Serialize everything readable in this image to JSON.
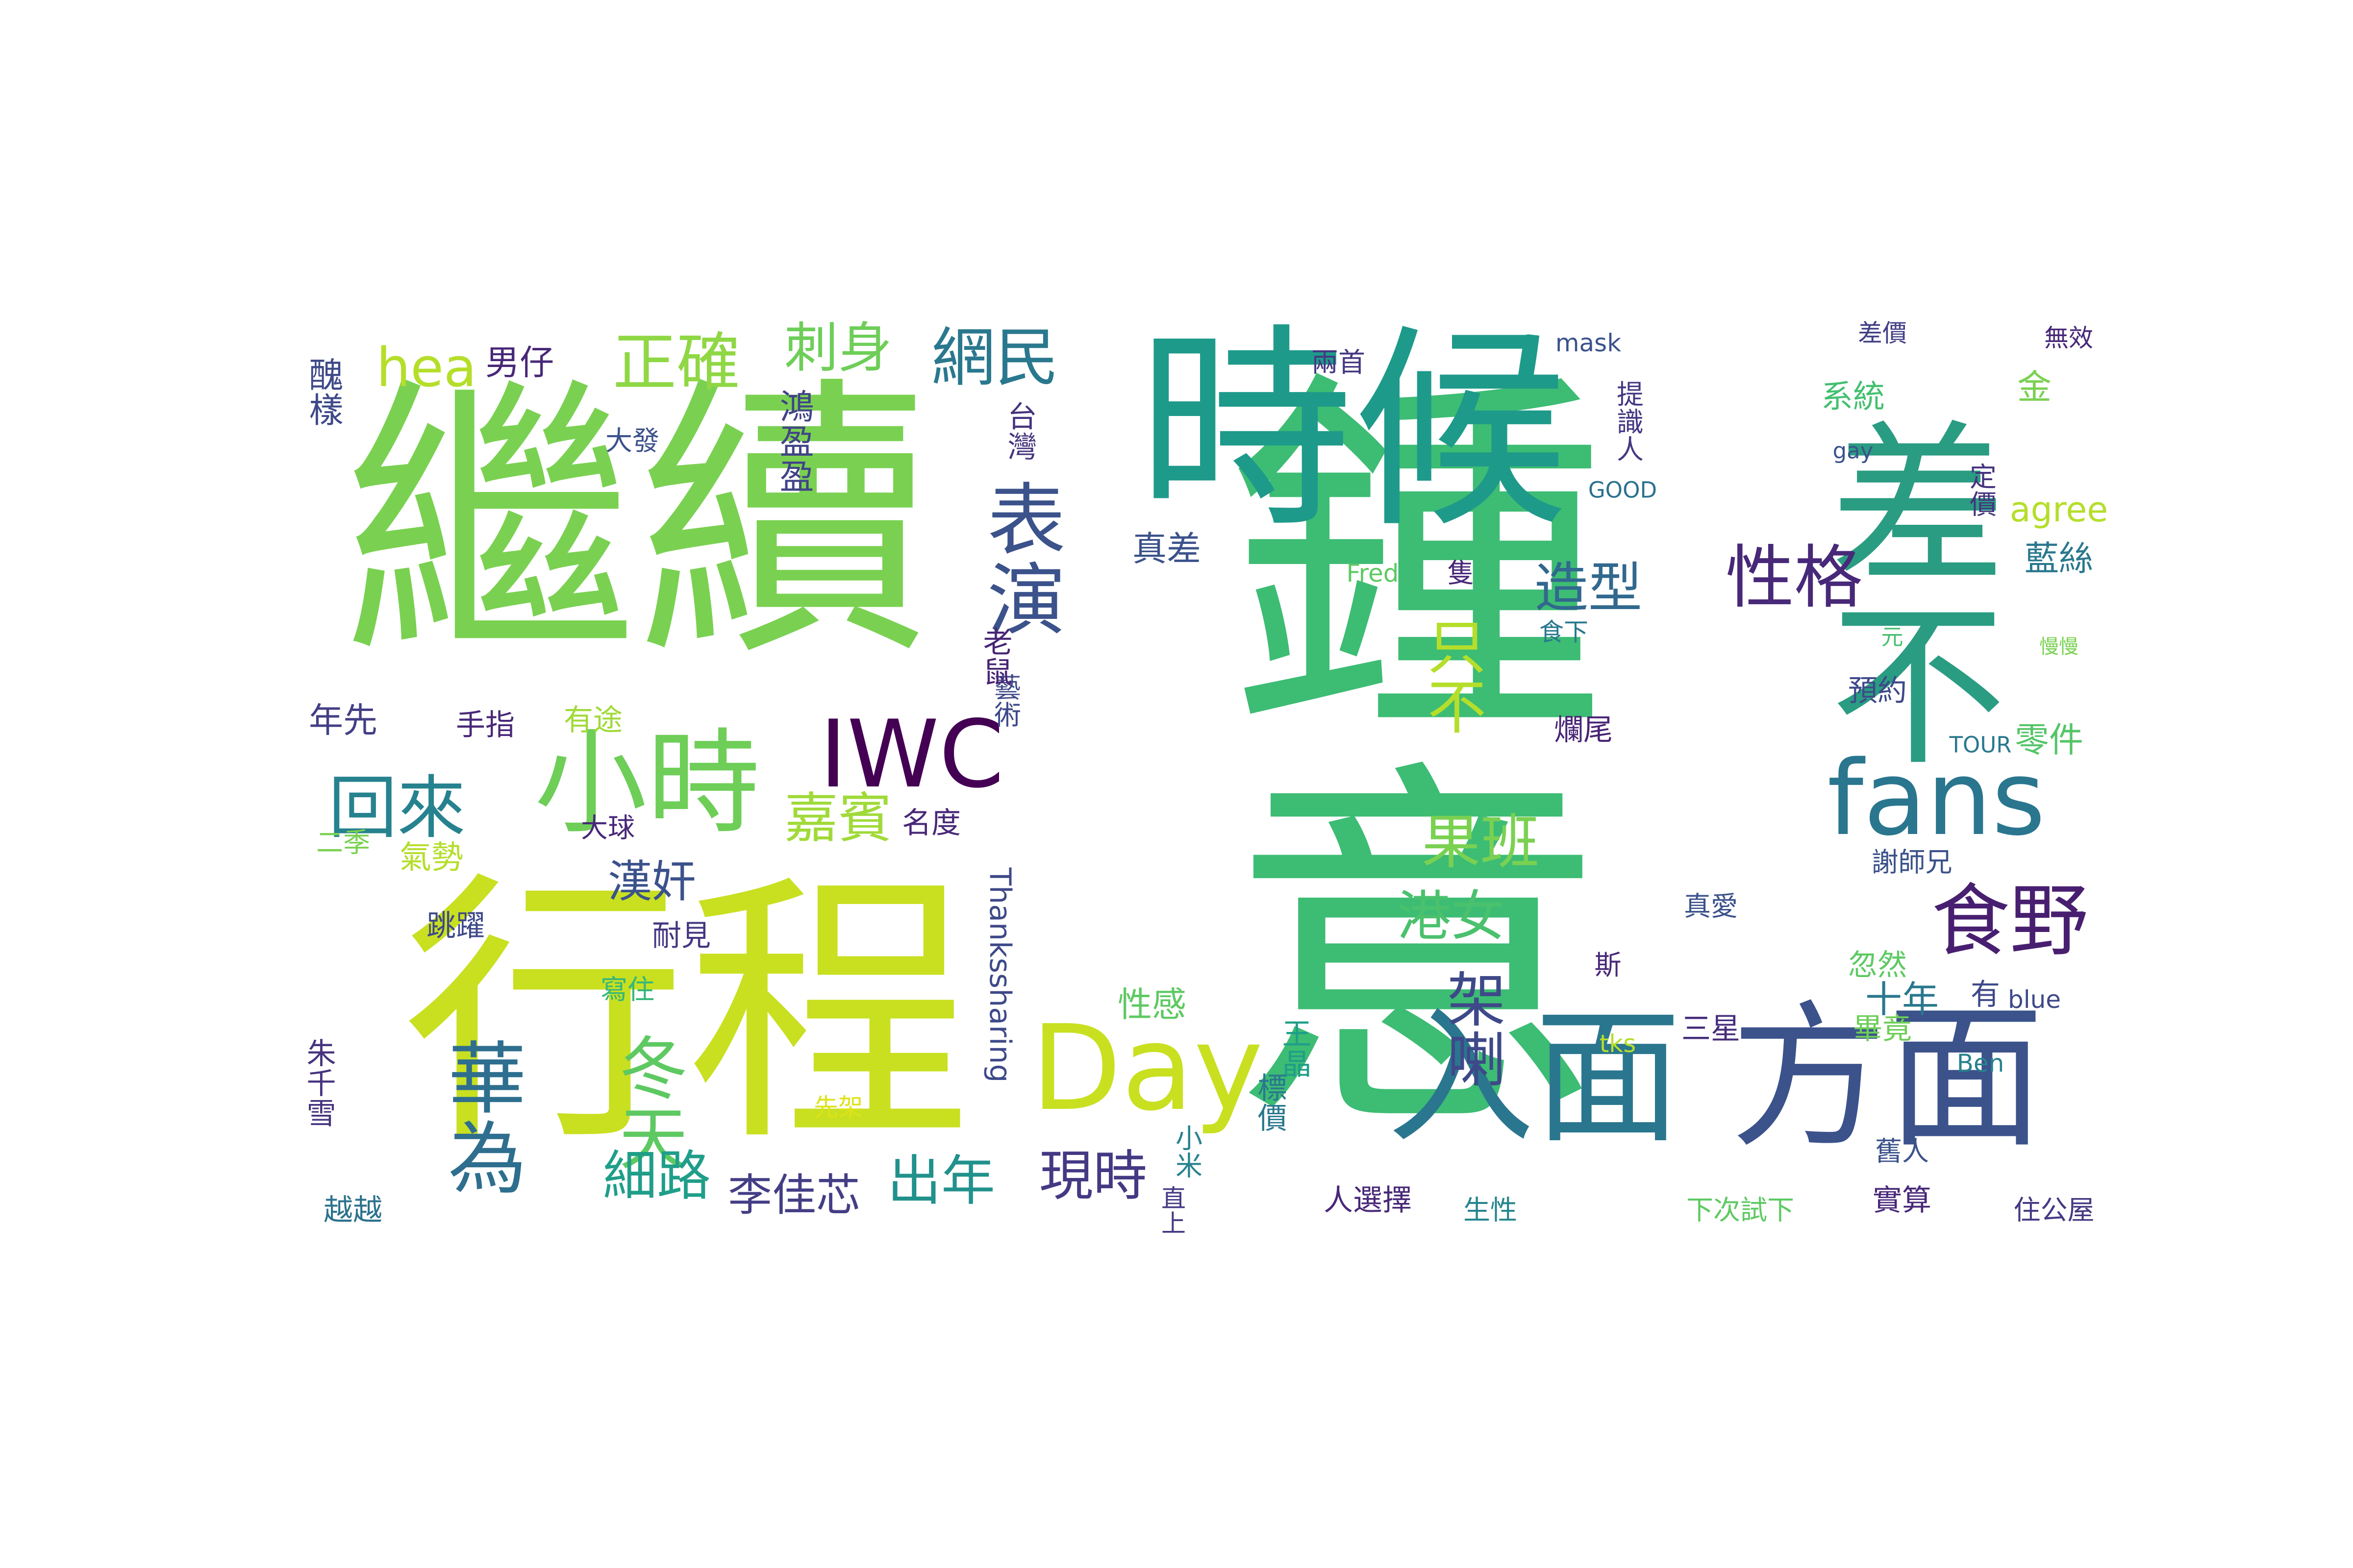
{
  "words": [
    {
      "text": "鍾意",
      "color": "#3dbc74"
    },
    {
      "text": "繼續",
      "color": "#7ad151"
    },
    {
      "text": "行程",
      "color": "#c8e020"
    },
    {
      "text": "時候",
      "color": "#1e9a8a"
    },
    {
      "text": "差不",
      "color": "#2a9c82"
    },
    {
      "text": "方面",
      "color": "#3b528b"
    },
    {
      "text": "入面",
      "color": "#2a768e"
    },
    {
      "text": "小時",
      "color": "#6ece58"
    },
    {
      "text": "Day",
      "color": "#c8e020"
    },
    {
      "text": "fans",
      "color": "#2a768e"
    },
    {
      "text": "IWC",
      "color": "#440154"
    },
    {
      "text": "表演",
      "color": "#3b528b"
    },
    {
      "text": "性格",
      "color": "#482878"
    },
    {
      "text": "食野",
      "color": "#481f70"
    },
    {
      "text": "回來",
      "color": "#26828e"
    },
    {
      "text": "正確",
      "color": "#8fd744"
    },
    {
      "text": "網民",
      "color": "#2a788e"
    },
    {
      "text": "刺身",
      "color": "#6ece58"
    },
    {
      "text": "hea",
      "color": "#b5de2b"
    },
    {
      "text": "冬天",
      "color": "#5ec962"
    },
    {
      "text": "華為",
      "color": "#2e6e8e"
    },
    {
      "text": "架喇",
      "color": "#3e4989"
    },
    {
      "text": "只不",
      "color": "#b5de2b"
    },
    {
      "text": "果班",
      "color": "#7ad151"
    },
    {
      "text": "造型",
      "color": "#31688e"
    },
    {
      "text": "嘉賓",
      "color": "#a0da39"
    },
    {
      "text": "漢奸",
      "color": "#3b528b"
    },
    {
      "text": "細路",
      "color": "#1f9e89"
    },
    {
      "text": "出年",
      "color": "#21918c"
    },
    {
      "text": "現時",
      "color": "#443983"
    },
    {
      "text": "李佳芯",
      "color": "#433e85"
    },
    {
      "text": "港女",
      "color": "#4ac16d"
    },
    {
      "text": "醜樣",
      "color": "#3e4989"
    },
    {
      "text": "男仔",
      "color": "#482878"
    },
    {
      "text": "鴻盈盈",
      "color": "#414487"
    },
    {
      "text": "大發",
      "color": "#3b528b"
    },
    {
      "text": "台灣",
      "color": "#46337e"
    },
    {
      "text": "藝術",
      "color": "#3e4989"
    },
    {
      "text": "老鼠",
      "color": "#482475"
    },
    {
      "text": "真差",
      "color": "#3b528b"
    },
    {
      "text": "年先",
      "color": "#433e85"
    },
    {
      "text": "手指",
      "color": "#482878"
    },
    {
      "text": "有途",
      "color": "#a0da39"
    },
    {
      "text": "二季",
      "color": "#7ad151"
    },
    {
      "text": "大球",
      "color": "#482878"
    },
    {
      "text": "氣勢",
      "color": "#b5de2b"
    },
    {
      "text": "跳躍",
      "color": "#3e4989"
    },
    {
      "text": "耐見",
      "color": "#453781"
    },
    {
      "text": "寫住",
      "color": "#35b779"
    },
    {
      "text": "朱千雪",
      "color": "#46337e"
    },
    {
      "text": "越越",
      "color": "#2c728e"
    },
    {
      "text": "名度",
      "color": "#482878"
    },
    {
      "text": "Thankssharing",
      "color": "#3e4989"
    },
    {
      "text": "性感",
      "color": "#5ec962"
    },
    {
      "text": "小米",
      "color": "#26828e"
    },
    {
      "text": "直上",
      "color": "#443983"
    },
    {
      "text": "先架",
      "color": "#dde318"
    },
    {
      "text": "王晶",
      "color": "#1f9e89"
    },
    {
      "text": "標價",
      "color": "#2a788e"
    },
    {
      "text": "人選擇",
      "color": "#482878"
    },
    {
      "text": "生性",
      "color": "#25858e"
    },
    {
      "text": "兩首",
      "color": "#453781"
    },
    {
      "text": "mask",
      "color": "#3b528b"
    },
    {
      "text": "提識人",
      "color": "#443983"
    },
    {
      "text": "Fred",
      "color": "#5ec962"
    },
    {
      "text": "隻",
      "color": "#482878"
    },
    {
      "text": "食下",
      "color": "#29798e"
    },
    {
      "text": "爛尾",
      "color": "#482475"
    },
    {
      "text": "斯",
      "color": "#482878"
    },
    {
      "text": "tks",
      "color": "#b5de2b"
    },
    {
      "text": "三星",
      "color": "#472c7a"
    },
    {
      "text": "真愛",
      "color": "#3b528b"
    },
    {
      "text": "差價",
      "color": "#424086"
    },
    {
      "text": "無效",
      "color": "#482878"
    },
    {
      "text": "系統",
      "color": "#44bf70"
    },
    {
      "text": "金",
      "color": "#7ad151"
    },
    {
      "text": "gay",
      "color": "#3b528b"
    },
    {
      "text": "GOOD",
      "color": "#2c728e"
    },
    {
      "text": "定價",
      "color": "#46337e"
    },
    {
      "text": "agree",
      "color": "#b5de2b"
    },
    {
      "text": "藍絲",
      "color": "#2a788e"
    },
    {
      "text": "元",
      "color": "#44bf70"
    },
    {
      "text": "慢慢",
      "color": "#7ad151"
    },
    {
      "text": "預約",
      "color": "#3e4989"
    },
    {
      "text": "TOUR",
      "color": "#2a788e"
    },
    {
      "text": "零件",
      "color": "#54c568"
    },
    {
      "text": "謝師兄",
      "color": "#3b528b"
    },
    {
      "text": "忽然",
      "color": "#5ec962"
    },
    {
      "text": "十年",
      "color": "#2a788e"
    },
    {
      "text": "有",
      "color": "#3e4989"
    },
    {
      "text": "blue",
      "color": "#3e4989"
    },
    {
      "text": "畢竟",
      "color": "#6ece58"
    },
    {
      "text": "Ben",
      "color": "#26828e"
    },
    {
      "text": "舊人",
      "color": "#3b528b"
    },
    {
      "text": "實算",
      "color": "#482878"
    },
    {
      "text": "下次試下",
      "color": "#5ec962"
    },
    {
      "text": "住公屋",
      "color": "#443983"
    }
  ]
}
